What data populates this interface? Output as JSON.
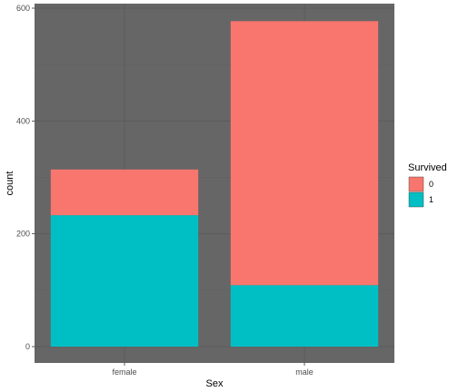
{
  "chart_data": {
    "type": "bar",
    "stacked": true,
    "categories": [
      "female",
      "male"
    ],
    "series": [
      {
        "name": "0",
        "values": [
          81,
          468
        ],
        "color": "#F8766D"
      },
      {
        "name": "1",
        "values": [
          233,
          109
        ],
        "color": "#00BFC4"
      }
    ],
    "xlabel": "Sex",
    "ylabel": "count",
    "ylim": [
      0,
      600
    ],
    "yticks": [
      0,
      200,
      400,
      600
    ],
    "legend": {
      "title": "Survived",
      "position": "right"
    },
    "panel_background": "#666666",
    "grid": true
  }
}
